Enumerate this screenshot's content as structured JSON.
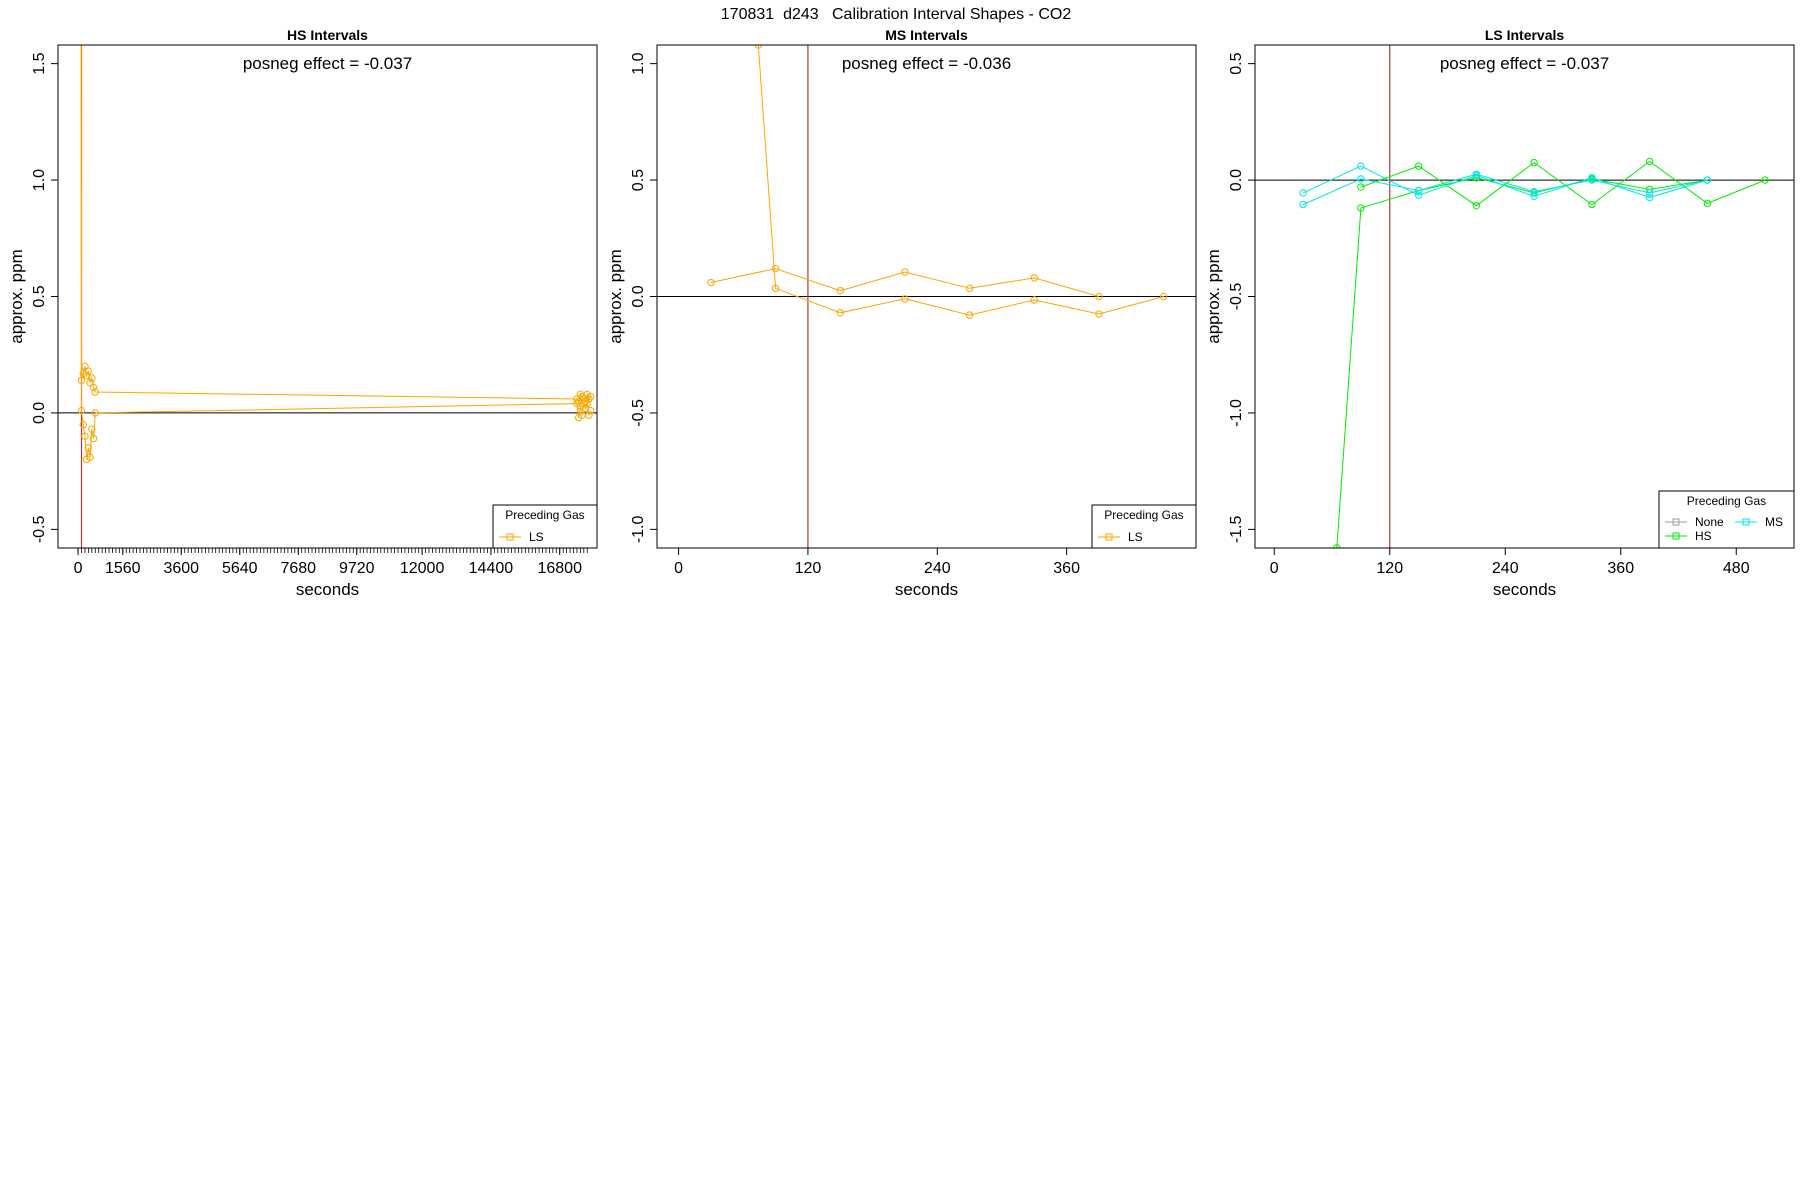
{
  "figure": {
    "title": "170831  d243   Calibration Interval Shapes - CO2"
  },
  "colors": {
    "orange": "#FFA500",
    "green": "#00EE00",
    "cyan": "#00E5EE",
    "gray": "#9E9E9E",
    "redline": "#B03A3A",
    "axis": "#000000"
  },
  "chart_data": [
    {
      "type": "line",
      "title": "HS Intervals",
      "xlabel": "seconds",
      "ylabel": "approx. ppm",
      "xlim": [
        -700,
        18100
      ],
      "ylim": [
        -0.58,
        1.58
      ],
      "xticks": [
        0,
        1560,
        3600,
        5640,
        7680,
        9720,
        12000,
        14400,
        16800
      ],
      "xtick_labels": [
        "0",
        "1560",
        "3600",
        "5640",
        "7680",
        "9720",
        "12000",
        "14400",
        "16800"
      ],
      "yticks": [
        -0.5,
        0.0,
        0.5,
        1.0,
        1.5
      ],
      "ytick_labels": [
        "-0.5",
        "0.0",
        "0.5",
        "1.0",
        "1.5"
      ],
      "minor_xticks": true,
      "vline": 120,
      "hline": 0,
      "annotation": "posneg effect = -0.037",
      "legend": {
        "title": "Preceding Gas",
        "position": "bottom-right",
        "entries": [
          "LS"
        ]
      },
      "series": [
        {
          "name": "LS",
          "color": "orange",
          "points": [
            [
              100,
              3.0
            ],
            [
              120,
              0.14
            ],
            [
              180,
              0.17
            ],
            [
              240,
              0.2
            ],
            [
              300,
              0.16
            ],
            [
              360,
              0.18
            ],
            [
              420,
              0.13
            ],
            [
              480,
              0.15
            ],
            [
              540,
              0.11
            ],
            [
              600,
              0.09
            ],
            [
              17400,
              0.06
            ],
            [
              17460,
              0.05
            ],
            [
              17520,
              0.08
            ],
            [
              17580,
              0.07
            ],
            [
              17640,
              0.06
            ],
            [
              17700,
              0.05
            ],
            [
              17760,
              0.08
            ],
            [
              17820,
              0.06
            ],
            [
              17880,
              0.07
            ]
          ]
        },
        {
          "name": "LS",
          "color": "orange",
          "points": [
            [
              100,
              3.0
            ],
            [
              120,
              0.01
            ],
            [
              180,
              -0.05
            ],
            [
              240,
              -0.1
            ],
            [
              300,
              -0.2
            ],
            [
              360,
              -0.15
            ],
            [
              420,
              -0.19
            ],
            [
              480,
              -0.07
            ],
            [
              540,
              -0.11
            ],
            [
              600,
              0.0
            ],
            [
              17400,
              0.04
            ],
            [
              17460,
              -0.02
            ],
            [
              17520,
              0.03
            ],
            [
              17580,
              -0.01
            ],
            [
              17640,
              0.04
            ],
            [
              17700,
              0.02
            ],
            [
              17760,
              0.04
            ],
            [
              17820,
              -0.01
            ],
            [
              17880,
              0.01
            ]
          ]
        }
      ]
    },
    {
      "type": "line",
      "title": "MS Intervals",
      "xlabel": "seconds",
      "ylabel": "approx. ppm",
      "xlim": [
        -20,
        480
      ],
      "ylim": [
        -1.08,
        1.08
      ],
      "xticks": [
        0,
        120,
        240,
        360
      ],
      "xtick_labels": [
        "0",
        "120",
        "240",
        "360"
      ],
      "yticks": [
        -1.0,
        -0.5,
        0.0,
        0.5,
        1.0
      ],
      "ytick_labels": [
        "-1.0",
        "-0.5",
        "0.0",
        "0.5",
        "1.0"
      ],
      "minor_xticks": false,
      "vline": 120,
      "hline": 0,
      "annotation": "posneg effect = -0.036",
      "legend": {
        "title": "Preceding Gas",
        "position": "bottom-right",
        "entries": [
          "LS"
        ]
      },
      "series": [
        {
          "name": "LS",
          "color": "orange",
          "points": [
            [
              30,
              0.06
            ],
            [
              90,
              0.12
            ],
            [
              150,
              0.025
            ],
            [
              210,
              0.105
            ],
            [
              270,
              0.035
            ],
            [
              330,
              0.08
            ],
            [
              390,
              0.0
            ]
          ]
        },
        {
          "name": "LS",
          "color": "orange",
          "points": [
            [
              74,
              1.08
            ],
            [
              90,
              0.035
            ],
            [
              150,
              -0.07
            ],
            [
              210,
              -0.01
            ],
            [
              270,
              -0.08
            ],
            [
              330,
              -0.015
            ],
            [
              390,
              -0.075
            ],
            [
              450,
              0.0
            ]
          ]
        }
      ]
    },
    {
      "type": "line",
      "title": "LS Intervals",
      "xlabel": "seconds",
      "ylabel": "approx. ppm",
      "xlim": [
        -20,
        540
      ],
      "ylim": [
        -1.58,
        0.58
      ],
      "xticks": [
        0,
        120,
        240,
        360,
        480
      ],
      "xtick_labels": [
        "0",
        "120",
        "240",
        "360",
        "480"
      ],
      "yticks": [
        -1.5,
        -1.0,
        -0.5,
        0.0,
        0.5
      ],
      "ytick_labels": [
        "-1.5",
        "-1.0",
        "-0.5",
        "0.0",
        "0.5"
      ],
      "minor_xticks": false,
      "vline": 120,
      "hline": 0,
      "annotation": "posneg effect = -0.037",
      "legend": {
        "title": "Preceding Gas",
        "position": "bottom-right",
        "entries": [
          "None",
          "MS",
          "HS"
        ]
      },
      "series": [
        {
          "name": "HS",
          "color": "green",
          "points": [
            [
              65,
              -1.58
            ],
            [
              90,
              -0.12
            ],
            [
              150,
              -0.045
            ],
            [
              210,
              0.01
            ],
            [
              270,
              -0.055
            ],
            [
              330,
              0.005
            ],
            [
              390,
              -0.04
            ],
            [
              450,
              0.0
            ]
          ]
        },
        {
          "name": "HS",
          "color": "green",
          "points": [
            [
              90,
              -0.03
            ],
            [
              150,
              0.06
            ],
            [
              210,
              -0.11
            ],
            [
              270,
              0.075
            ],
            [
              330,
              -0.105
            ],
            [
              390,
              0.08
            ],
            [
              450,
              -0.1
            ],
            [
              510,
              0.0
            ]
          ]
        },
        {
          "name": "MS",
          "color": "cyan",
          "points": [
            [
              30,
              -0.055
            ],
            [
              90,
              0.06
            ],
            [
              150,
              -0.065
            ],
            [
              210,
              0.02
            ],
            [
              270,
              -0.07
            ],
            [
              330,
              0.01
            ],
            [
              390,
              -0.075
            ],
            [
              450,
              0.0
            ]
          ]
        },
        {
          "name": "MS",
          "color": "cyan",
          "points": [
            [
              30,
              -0.105
            ],
            [
              90,
              0.005
            ],
            [
              150,
              -0.045
            ],
            [
              210,
              0.025
            ],
            [
              270,
              -0.05
            ],
            [
              330,
              0.0
            ],
            [
              390,
              -0.055
            ],
            [
              450,
              0.0
            ]
          ]
        }
      ]
    }
  ]
}
